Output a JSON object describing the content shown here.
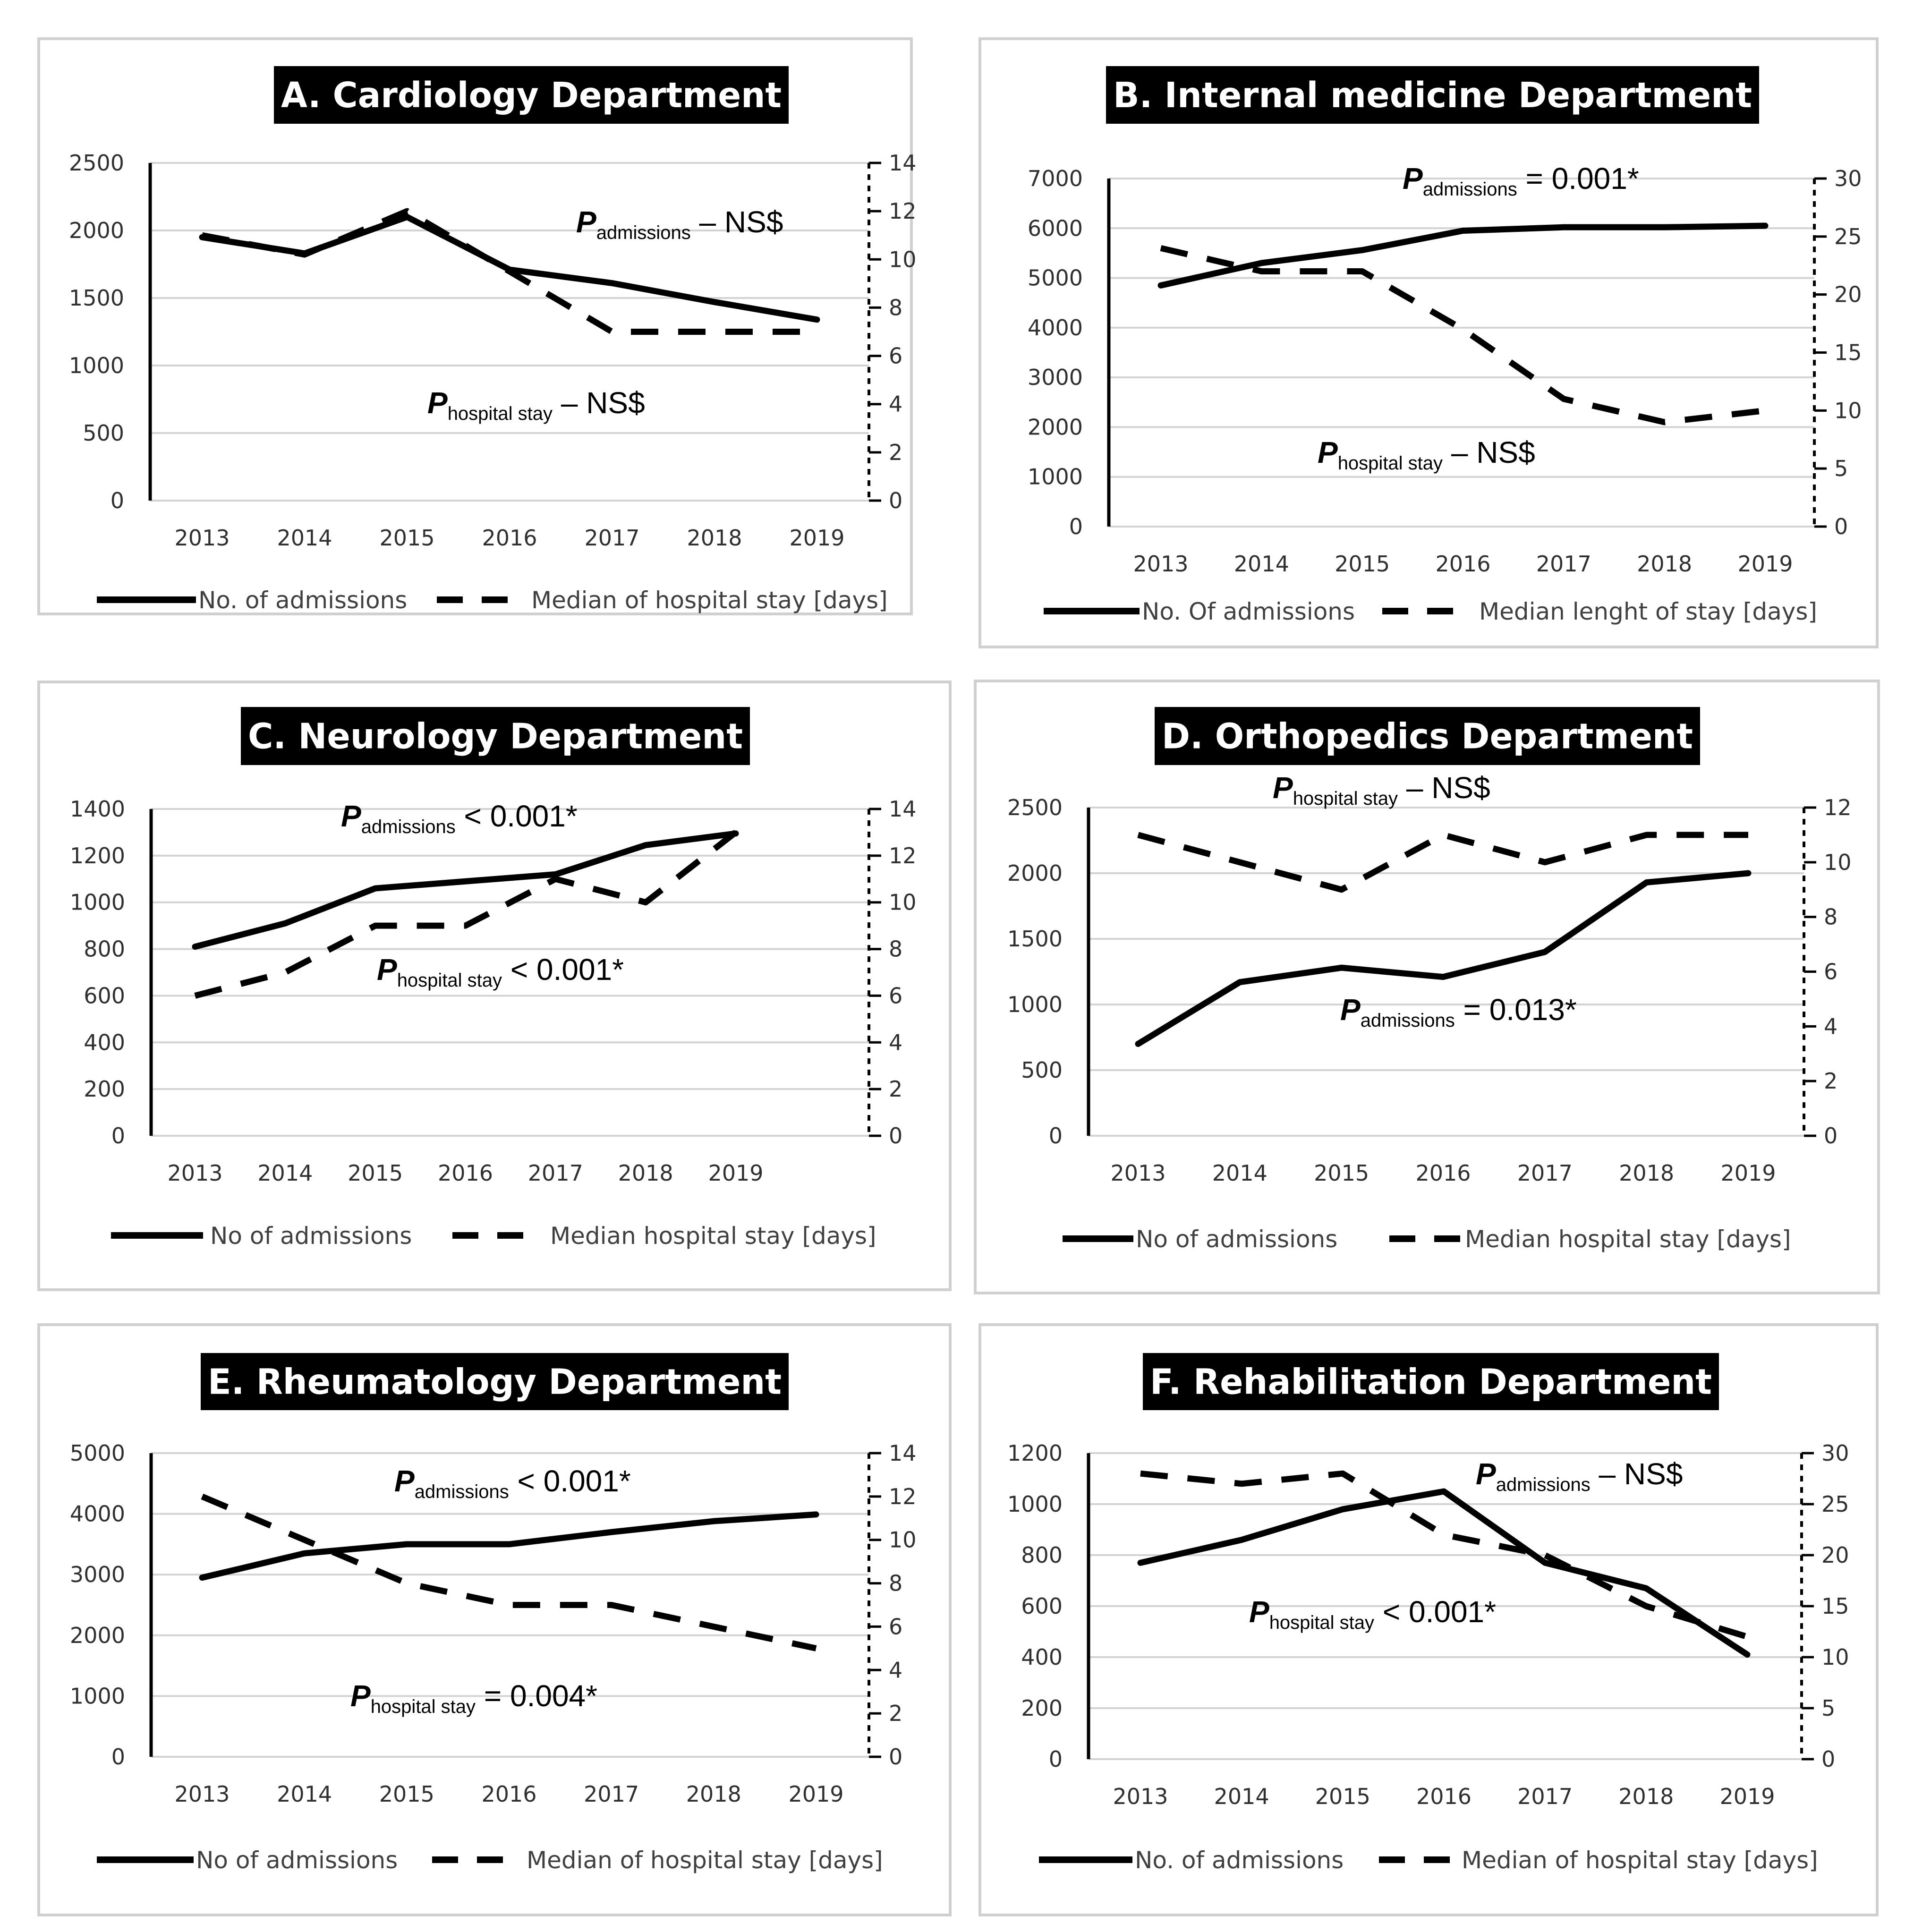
{
  "chart_data": [
    {
      "type": "line",
      "title": "A. Cardiology Department",
      "categories": [
        "2013",
        "2014",
        "2015",
        "2016",
        "2017",
        "2018",
        "2019"
      ],
      "yleft": {
        "range": [
          0,
          2500
        ],
        "ticks": [
          "0",
          "500",
          "1000",
          "1500",
          "2000",
          "2500"
        ]
      },
      "yright": {
        "range": [
          0,
          14
        ],
        "ticks": [
          "0",
          "2",
          "4",
          "6",
          "8",
          "10",
          "12",
          "14"
        ]
      },
      "series": [
        {
          "name": "No. of admissions",
          "axis": "left",
          "style": "solid",
          "values": [
            1950,
            1830,
            2100,
            1710,
            1610,
            1470,
            1340
          ]
        },
        {
          "name": "Median of hospital stay [days]",
          "axis": "right",
          "style": "dashed",
          "values": [
            11,
            10.2,
            12,
            9.5,
            7,
            7,
            7
          ]
        }
      ],
      "annotations": [
        {
          "p": "P",
          "sub": "admissions",
          "rest": " – NS$"
        },
        {
          "p": "P",
          "sub": "hospital stay",
          "rest": " – NS$"
        }
      ]
    },
    {
      "type": "line",
      "title": "B. Internal medicine Department",
      "categories": [
        "2013",
        "2014",
        "2015",
        "2016",
        "2017",
        "2018",
        "2019"
      ],
      "yleft": {
        "range": [
          0,
          7000
        ],
        "ticks": [
          "0",
          "1000",
          "2000",
          "3000",
          "4000",
          "5000",
          "6000",
          "7000"
        ]
      },
      "yright": {
        "range": [
          0,
          30
        ],
        "ticks": [
          "0",
          "5",
          "10",
          "15",
          "20",
          "25",
          "30"
        ]
      },
      "series": [
        {
          "name": "No. Of admissions",
          "axis": "left",
          "style": "solid",
          "values": [
            4850,
            5300,
            5560,
            5950,
            6020,
            6020,
            6050
          ]
        },
        {
          "name": "Median lenght of stay [days]",
          "axis": "right",
          "style": "dashed",
          "values": [
            24,
            22,
            22,
            17,
            11,
            9,
            10
          ]
        }
      ],
      "annotations": [
        {
          "p": "P",
          "sub": "admissions",
          "rest": " = 0.001*"
        },
        {
          "p": "P",
          "sub": "hospital stay",
          "rest": " – NS$"
        }
      ]
    },
    {
      "type": "line",
      "title": "C. Neurology Department",
      "categories": [
        "2013",
        "2014",
        "2015",
        "2016",
        "2017",
        "2018",
        "2019"
      ],
      "yleft": {
        "range": [
          0,
          1400
        ],
        "ticks": [
          "0",
          "200",
          "400",
          "600",
          "800",
          "1000",
          "1200",
          "1400"
        ]
      },
      "yright": {
        "range": [
          0,
          14
        ],
        "ticks": [
          "0",
          "2",
          "4",
          "6",
          "8",
          "10",
          "12",
          "14"
        ]
      },
      "series": [
        {
          "name": "No of admissions",
          "axis": "left",
          "style": "solid",
          "values": [
            810,
            910,
            1060,
            1090,
            1120,
            1245,
            1295
          ]
        },
        {
          "name": "Median hospital stay [days]",
          "axis": "right",
          "style": "dashed",
          "values": [
            6,
            7,
            9,
            9,
            11,
            10,
            13
          ]
        }
      ],
      "annotations": [
        {
          "p": "P",
          "sub": "admissions",
          "rest": " < 0.001*"
        },
        {
          "p": "P",
          "sub": "hospital stay",
          "rest": " < 0.001*"
        }
      ]
    },
    {
      "type": "line",
      "title": "D. Orthopedics Department",
      "categories": [
        "2013",
        "2014",
        "2015",
        "2016",
        "2017",
        "2018",
        "2019"
      ],
      "yleft": {
        "range": [
          0,
          2500
        ],
        "ticks": [
          "0",
          "500",
          "1000",
          "1500",
          "2000",
          "2500"
        ]
      },
      "yright": {
        "range": [
          0,
          12
        ],
        "ticks": [
          "0",
          "2",
          "4",
          "6",
          "8",
          "10",
          "12"
        ]
      },
      "series": [
        {
          "name": "No of admissions",
          "axis": "left",
          "style": "solid",
          "values": [
            700,
            1170,
            1280,
            1210,
            1400,
            1930,
            2000
          ]
        },
        {
          "name": "Median hospital stay [days]",
          "axis": "right",
          "style": "dashed",
          "values": [
            11,
            10,
            9,
            11,
            10,
            11,
            11
          ]
        }
      ],
      "annotations": [
        {
          "p": "P",
          "sub": "hospital stay",
          "rest": " – NS$"
        },
        {
          "p": "P",
          "sub": "admissions",
          "rest": " = 0.013*"
        }
      ]
    },
    {
      "type": "line",
      "title": "E. Rheumatology Department",
      "categories": [
        "2013",
        "2014",
        "2015",
        "2016",
        "2017",
        "2018",
        "2019"
      ],
      "yleft": {
        "range": [
          0,
          5000
        ],
        "ticks": [
          "0",
          "1000",
          "2000",
          "3000",
          "4000",
          "5000"
        ]
      },
      "yright": {
        "range": [
          0,
          14
        ],
        "ticks": [
          "0",
          "2",
          "4",
          "6",
          "8",
          "10",
          "12",
          "14"
        ]
      },
      "series": [
        {
          "name": "No of admissions",
          "axis": "left",
          "style": "solid",
          "values": [
            2950,
            3350,
            3500,
            3500,
            3700,
            3880,
            3990
          ]
        },
        {
          "name": "Median of hospital stay [days]",
          "axis": "right",
          "style": "dashed",
          "values": [
            12,
            10,
            8,
            7,
            7,
            6,
            5
          ]
        }
      ],
      "annotations": [
        {
          "p": "P",
          "sub": "admissions",
          "rest": " < 0.001*"
        },
        {
          "p": "P",
          "sub": "hospital stay",
          "rest": " = 0.004*"
        }
      ]
    },
    {
      "type": "line",
      "title": "F. Rehabilitation Department",
      "categories": [
        "2013",
        "2014",
        "2015",
        "2016",
        "2017",
        "2018",
        "2019"
      ],
      "yleft": {
        "range": [
          0,
          1200
        ],
        "ticks": [
          "0",
          "200",
          "400",
          "600",
          "800",
          "1000",
          "1200"
        ]
      },
      "yright": {
        "range": [
          0,
          30
        ],
        "ticks": [
          "0",
          "5",
          "10",
          "15",
          "20",
          "25",
          "30"
        ]
      },
      "series": [
        {
          "name": "No. of admissions",
          "axis": "left",
          "style": "solid",
          "values": [
            770,
            860,
            980,
            1050,
            770,
            670,
            410
          ]
        },
        {
          "name": "Median of hospital stay [days]",
          "axis": "right",
          "style": "dashed",
          "values": [
            28,
            27,
            28,
            22,
            20,
            15,
            12
          ]
        }
      ],
      "annotations": [
        {
          "p": "P",
          "sub": "admissions",
          "rest": " – NS$"
        },
        {
          "p": "P",
          "sub": "hospital stay",
          "rest": " < 0.001*"
        }
      ]
    }
  ]
}
